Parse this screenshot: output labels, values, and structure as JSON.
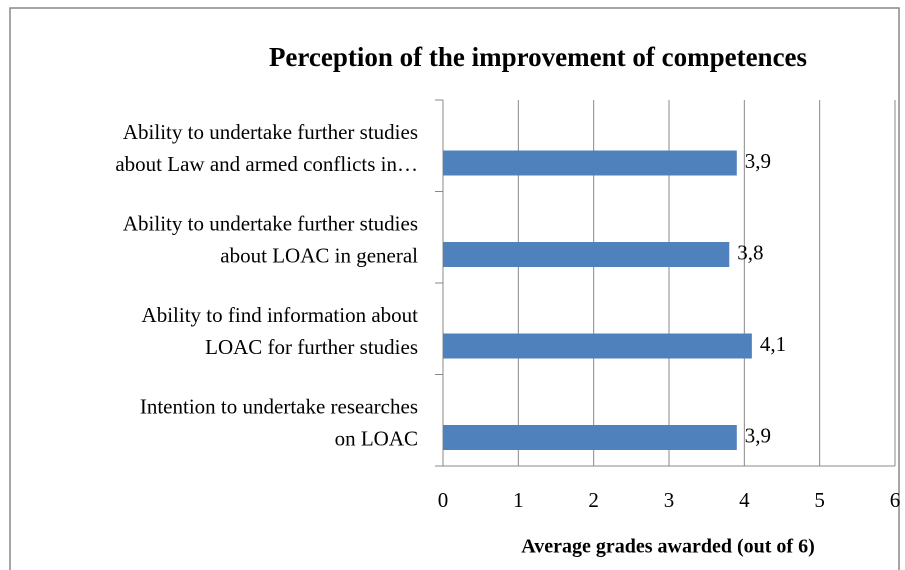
{
  "chart_data": {
    "type": "bar",
    "orientation": "horizontal",
    "title": "Perception of the improvement of competences",
    "x_label": "Average grades awarded (out of 6)",
    "categories": [
      [
        "Ability to undertake further studies",
        "about Law and armed conflicts in…"
      ],
      [
        "Ability to undertake further studies",
        "about LOAC in general"
      ],
      [
        "Ability to find information about",
        "LOAC for further studies"
      ],
      [
        "Intention to undertake researches",
        "on LOAC"
      ]
    ],
    "values": [
      3.9,
      3.8,
      4.1,
      3.9
    ],
    "value_labels": [
      "3,9",
      "3,8",
      "4,1",
      "3,9"
    ],
    "color": "#4f81bd",
    "xlim": [
      0,
      6
    ],
    "xticks": [
      0,
      1,
      2,
      3,
      4,
      5,
      6
    ],
    "grid": true
  }
}
